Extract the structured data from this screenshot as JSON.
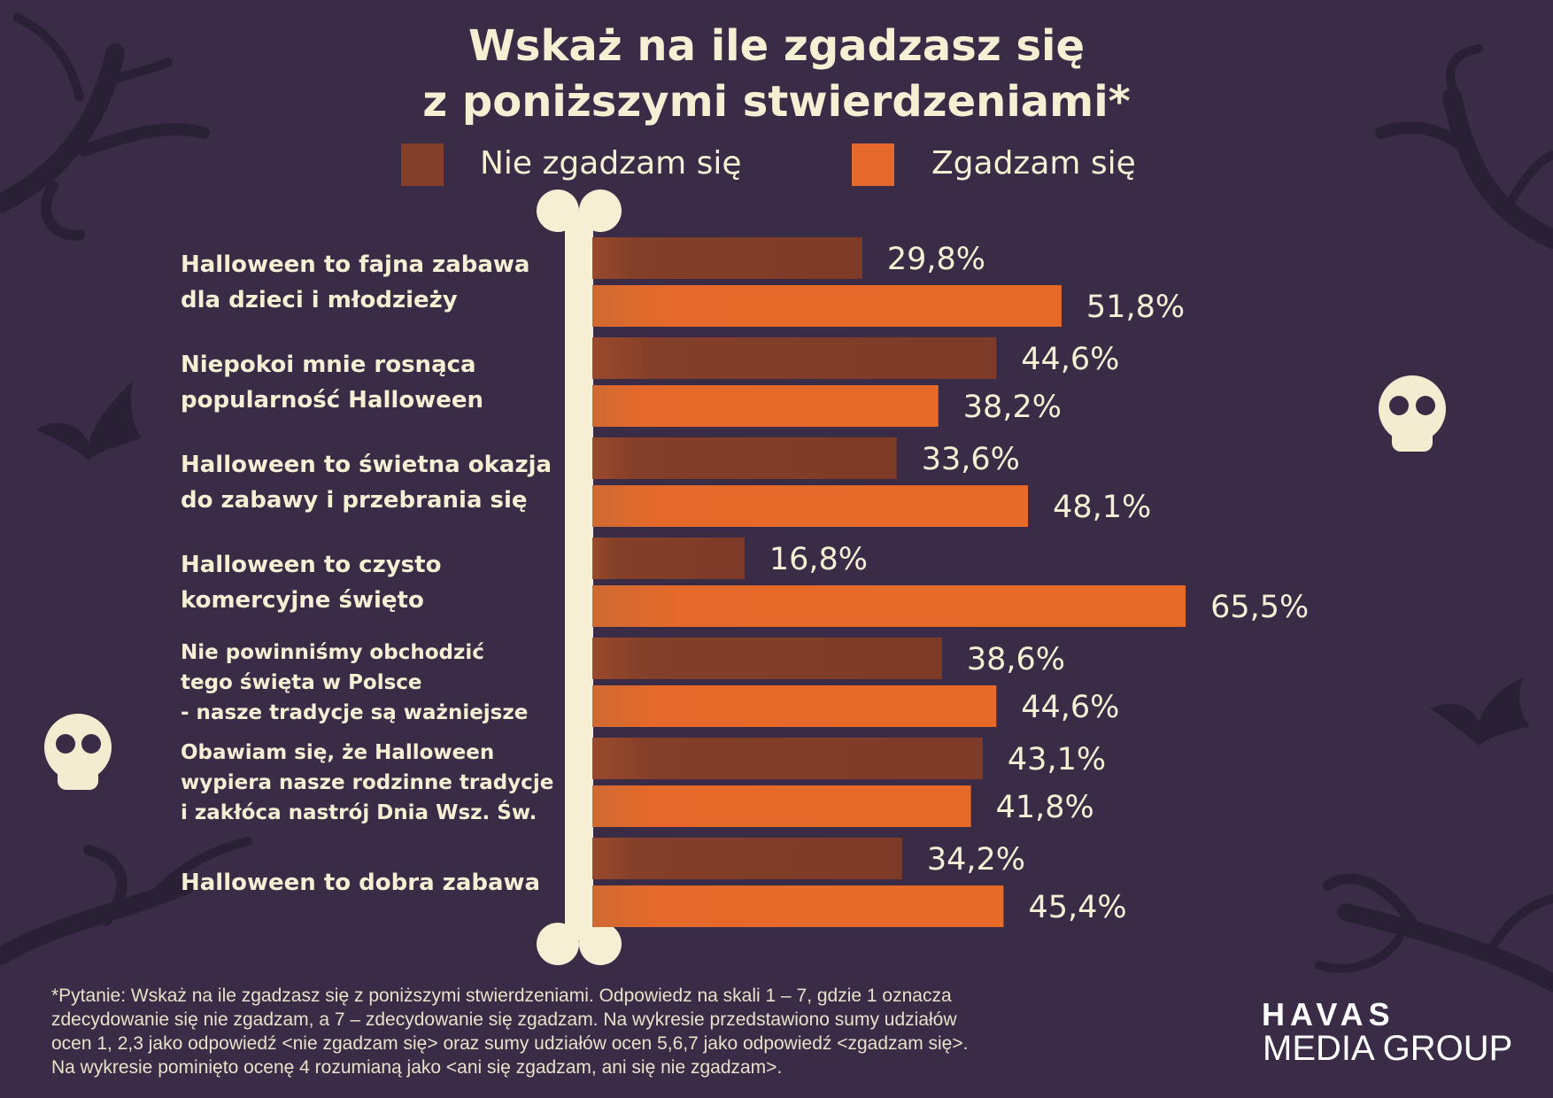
{
  "title_line1": "Wskaż na ile zgadzasz się",
  "title_line2": "z poniższymi stwierdzeniami*",
  "colors": {
    "background": "#3a2c47",
    "disagree": "#833f29",
    "agree": "#e5692a",
    "text": "#f6efd4"
  },
  "chart_data": {
    "type": "bar",
    "orientation": "horizontal",
    "categories": [
      [
        "Halloween to fajna zabawa",
        "dla dzieci i młodzieży"
      ],
      [
        "Niepokoi mnie rosnąca",
        "popularność Halloween"
      ],
      [
        "Halloween to świetna okazja",
        "do zabawy i przebrania się"
      ],
      [
        "Halloween to czysto",
        "komercyjne święto"
      ],
      [
        "Nie powinniśmy obchodzić",
        "tego święta w Polsce",
        "- nasze tradycje są ważniejsze"
      ],
      [
        "Obawiam się, że Halloween",
        "wypiera nasze rodzinne tradycje",
        "i zakłóca nastrój Dnia Wsz. Św."
      ],
      [
        "Halloween to dobra zabawa"
      ]
    ],
    "series": [
      {
        "name": "Nie zgadzam się",
        "values": [
          29.8,
          44.6,
          33.6,
          16.8,
          38.6,
          43.1,
          34.2
        ],
        "labels": [
          "29,8%",
          "44,6%",
          "33,6%",
          "16,8%",
          "38,6%",
          "43,1%",
          "34,2%"
        ]
      },
      {
        "name": "Zgadzam się",
        "values": [
          51.8,
          38.2,
          48.1,
          65.5,
          44.6,
          41.8,
          45.4
        ],
        "labels": [
          "51,8%",
          "38,2%",
          "48,1%",
          "65,5%",
          "44,6%",
          "41,8%",
          "45,4%"
        ]
      }
    ],
    "unit": "%",
    "legend_position": "top",
    "grid": false
  },
  "footnote": [
    "*Pytanie: Wskaż na ile zgadzasz się z poniższymi stwierdzeniami. Odpowiedz na skali 1 – 7, gdzie 1 oznacza",
    "zdecydowanie się nie zgadzam, a 7 – zdecydowanie się zgadzam. Na wykresie przedstawiono sumy udziałów",
    "ocen 1, 2,3 jako odpowiedź <nie zgadzam się> oraz sumy udziałów ocen 5,6,7  jako odpowiedź <zgadzam się>.",
    "Na wykresie pominięto ocenę 4 rozumianą jako <ani się zgadzam, ani się nie zgadzam>."
  ],
  "logo": {
    "line1": "HAVAS",
    "line2": "MEDIA GROUP"
  },
  "decorations": [
    "branch-icon",
    "bat-icon",
    "skull-icon",
    "bone-icon"
  ]
}
